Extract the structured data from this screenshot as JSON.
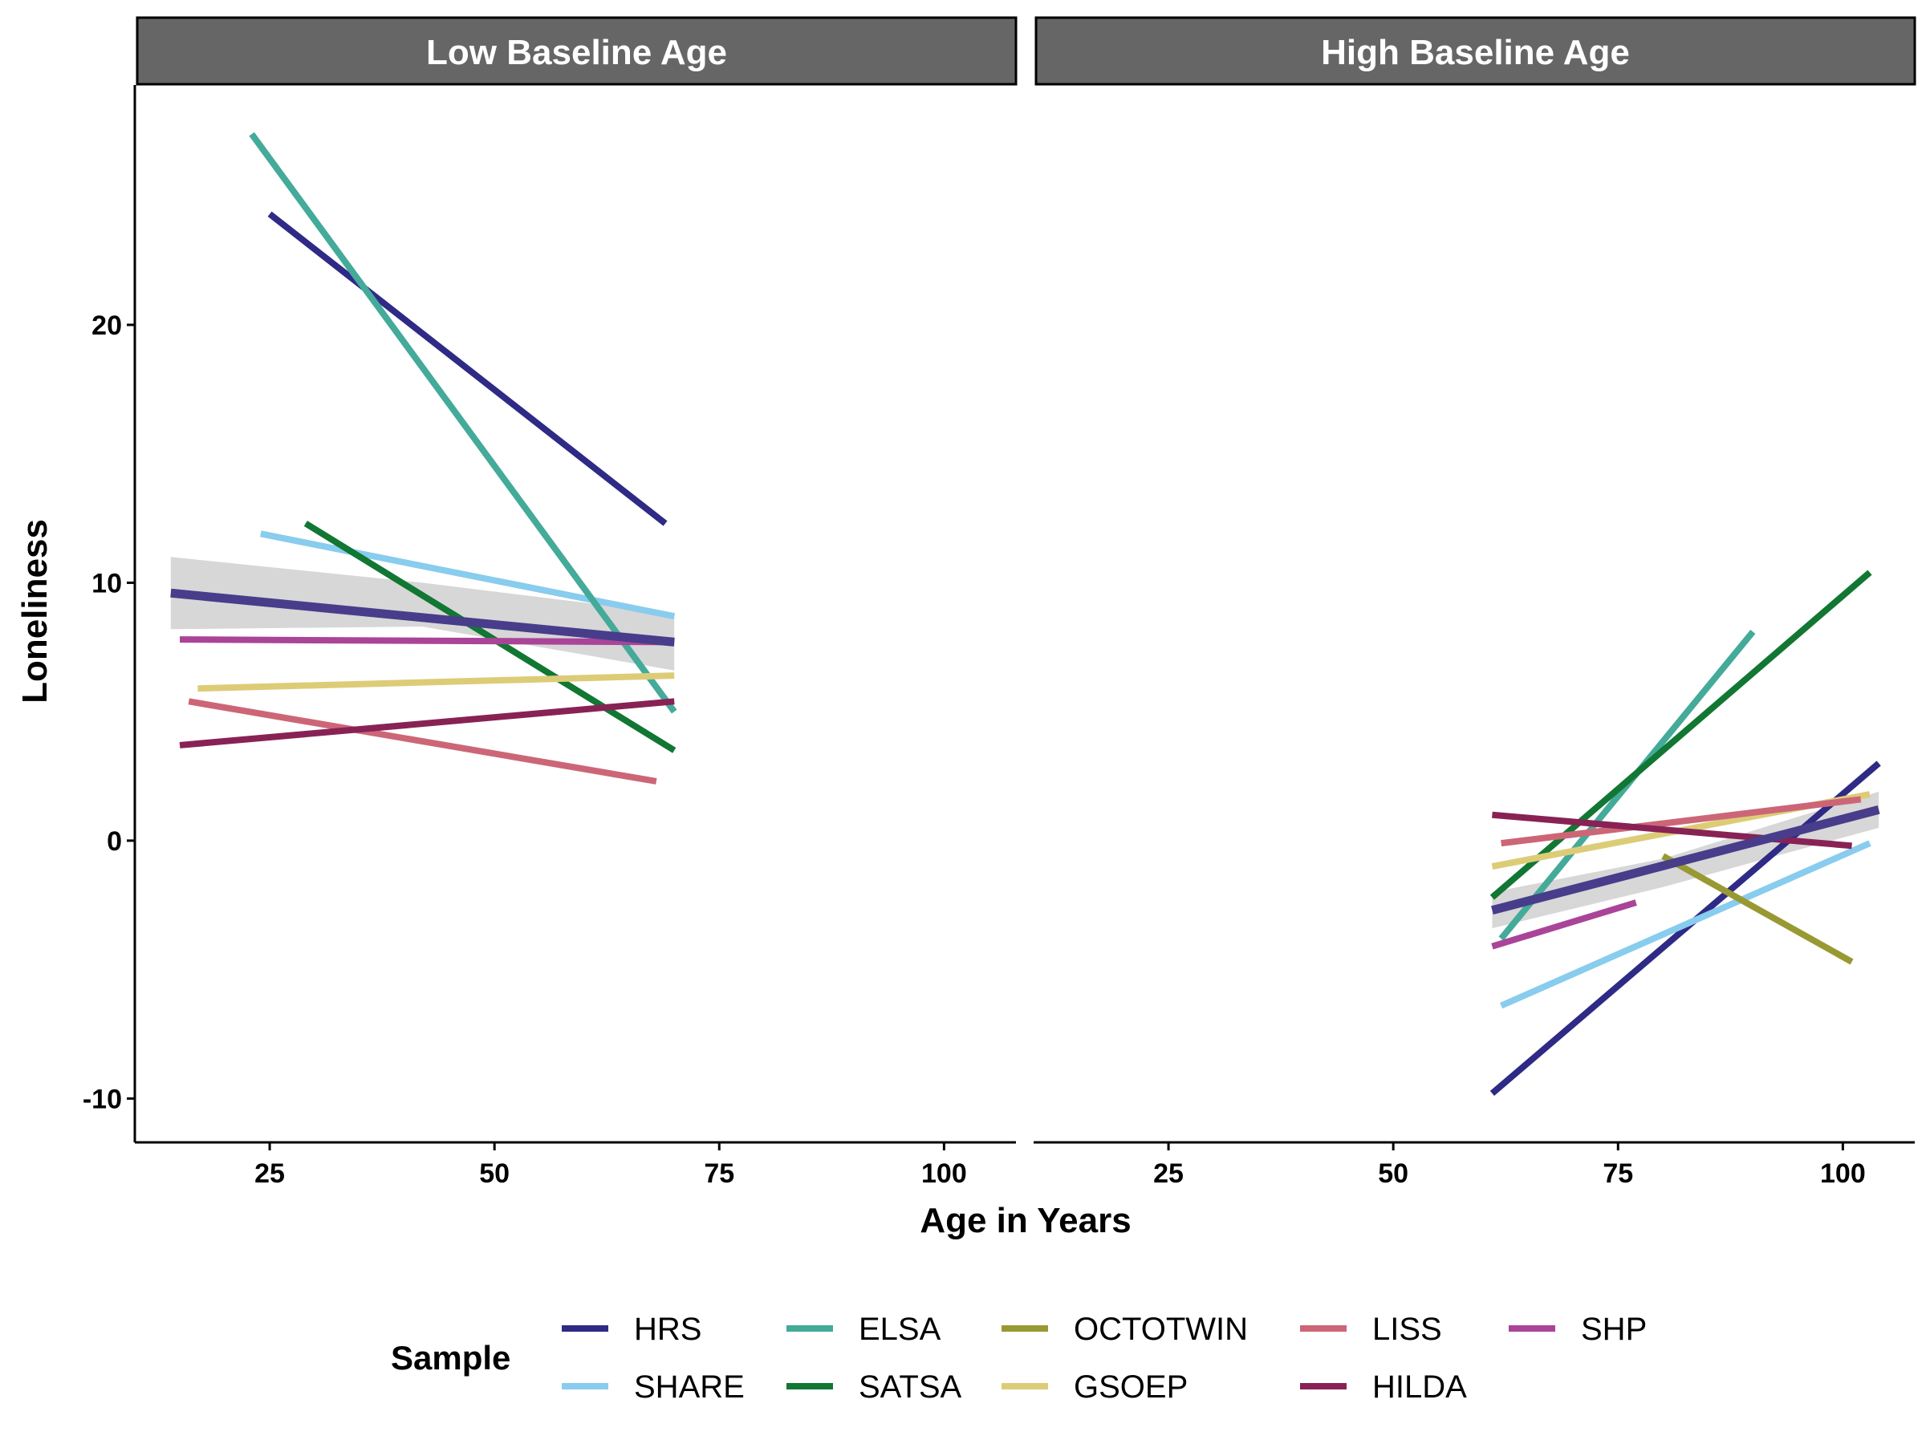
{
  "chart_data": {
    "type": "line",
    "facets": [
      "Low Baseline Age",
      "High Baseline Age"
    ],
    "xlabel": "Age in Years",
    "ylabel": "Loneliness",
    "xlim": [
      10,
      108
    ],
    "ylim": [
      -11.7,
      29.3
    ],
    "x_ticks": [
      25,
      50,
      75,
      100
    ],
    "y_ticks": [
      20,
      10,
      0,
      -10
    ],
    "y_tick_labels": [
      "20",
      "10",
      "0",
      "-10"
    ],
    "grid": false,
    "legend": {
      "title": "Sample",
      "position": "bottom"
    },
    "series": [
      {
        "name": "HRS",
        "color": "#2E2A85",
        "segments": [
          [
            [
              25,
              24.3
            ],
            [
              69,
              12.3
            ]
          ],
          [
            [
              61,
              -9.8
            ],
            [
              104,
              3.0
            ]
          ]
        ]
      },
      {
        "name": "SHARE",
        "color": "#88CCEE",
        "segments": [
          [
            [
              24,
              11.9
            ],
            [
              70,
              8.7
            ]
          ],
          [
            [
              62,
              -6.4
            ],
            [
              103,
              -0.1
            ]
          ]
        ]
      },
      {
        "name": "ELSA",
        "color": "#44AA99",
        "segments": [
          [
            [
              23,
              27.4
            ],
            [
              70,
              5.0
            ]
          ],
          [
            [
              62,
              -3.8
            ],
            [
              90,
              8.1
            ]
          ]
        ]
      },
      {
        "name": "SATSA",
        "color": "#117733",
        "segments": [
          [
            [
              29,
              12.3
            ],
            [
              70,
              3.5
            ]
          ],
          [
            [
              61,
              -2.2
            ],
            [
              103,
              10.4
            ]
          ]
        ]
      },
      {
        "name": "OCTOTWIN",
        "color": "#999933",
        "segments": [
          [
            [
              80,
              -0.6
            ],
            [
              101,
              -4.7
            ]
          ]
        ]
      },
      {
        "name": "GSOEP",
        "color": "#DDCC77",
        "segments": [
          [
            [
              17,
              5.9
            ],
            [
              70,
              6.4
            ]
          ],
          [
            [
              61,
              -1.0
            ],
            [
              103,
              1.8
            ]
          ]
        ]
      },
      {
        "name": "LISS",
        "color": "#CC6677",
        "segments": [
          [
            [
              16,
              5.4
            ],
            [
              68,
              2.3
            ]
          ],
          [
            [
              62,
              -0.1
            ],
            [
              102,
              1.6
            ]
          ]
        ]
      },
      {
        "name": "HILDA",
        "color": "#882255",
        "segments": [
          [
            [
              15,
              3.7
            ],
            [
              70,
              5.4
            ]
          ],
          [
            [
              61,
              1.0
            ],
            [
              101,
              -0.2
            ]
          ]
        ]
      },
      {
        "name": "SHP",
        "color": "#AA4499",
        "segments": [
          [
            [
              15,
              7.8
            ],
            [
              70,
              7.7
            ]
          ],
          [
            [
              61,
              -4.1
            ],
            [
              77,
              -2.4
            ]
          ]
        ]
      }
    ],
    "pooled": {
      "color": "#483D8B",
      "band_color": "#D0D0D0",
      "segments": [
        {
          "line": [
            [
              14,
              9.6
            ],
            [
              70,
              7.7
            ]
          ],
          "band": [
            [
              14,
              11.0,
              8.2
            ],
            [
              42,
              10.0,
              8.3
            ],
            [
              70,
              8.8,
              6.6
            ]
          ]
        },
        {
          "line": [
            [
              61,
              -2.7
            ],
            [
              104,
              1.2
            ]
          ],
          "band": [
            [
              61,
              -2.0,
              -3.4
            ],
            [
              80,
              -0.7,
              -1.8
            ],
            [
              104,
              1.9,
              0.5
            ]
          ]
        }
      ]
    }
  }
}
